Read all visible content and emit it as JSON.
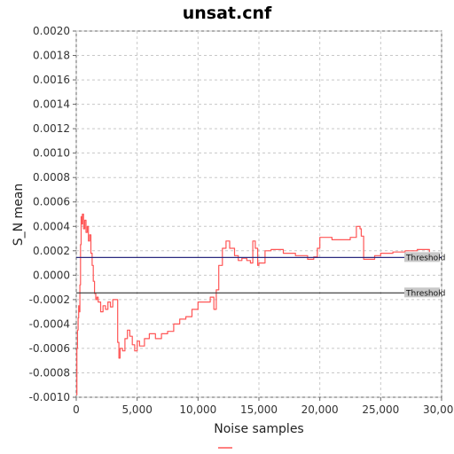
{
  "chart_data": {
    "type": "line",
    "title": "unsat.cnf",
    "xlabel": "Noise samples",
    "ylabel": "S_N mean",
    "xlim": [
      0,
      30000
    ],
    "ylim": [
      -0.001,
      0.002
    ],
    "xticks": [
      "0",
      "5,000",
      "10,000",
      "15,000",
      "20,000",
      "25,000",
      "30,000"
    ],
    "yticks": [
      "0.0020",
      "0.0018",
      "0.0016",
      "0.0014",
      "0.0012",
      "0.0010",
      "0.0008",
      "0.0006",
      "0.0004",
      "0.0002",
      "0.0000",
      "-0.0002",
      "-0.0004",
      "-0.0006",
      "-0.0008",
      "-0.0010"
    ],
    "grid": true,
    "legend": "bottom-center",
    "series": [
      {
        "color": "#ff5555",
        "x": [
          0,
          50,
          100,
          150,
          200,
          250,
          300,
          350,
          400,
          450,
          500,
          600,
          700,
          800,
          900,
          1000,
          1100,
          1200,
          1300,
          1400,
          1500,
          1600,
          1700,
          1800,
          2000,
          2200,
          2400,
          2600,
          2800,
          3000,
          3200,
          3400,
          3500,
          3600,
          3800,
          4000,
          4200,
          4400,
          4600,
          4800,
          5000,
          5200,
          5600,
          6000,
          6500,
          7000,
          7500,
          8000,
          8500,
          9000,
          9500,
          10000,
          10500,
          11000,
          11300,
          11500,
          11700,
          12000,
          12300,
          12600,
          13000,
          13300,
          13600,
          14000,
          14300,
          14500,
          14700,
          14900,
          15000,
          15500,
          16000,
          17000,
          18000,
          19000,
          19500,
          19800,
          20000,
          21000,
          22000,
          22500,
          23000,
          23300,
          23400,
          23600,
          24000,
          24500,
          25000,
          26000,
          27000,
          28000,
          29000
        ],
        "values": [
          -0.00098,
          -0.0006,
          -0.00045,
          -0.00035,
          -0.00025,
          -0.0003,
          -8e-05,
          0.00025,
          0.00048,
          0.00042,
          0.0005,
          0.00038,
          0.00045,
          0.00035,
          0.0004,
          0.00028,
          0.00033,
          0.00018,
          8e-05,
          -5e-05,
          -0.00015,
          -0.0002,
          -0.00018,
          -0.00022,
          -0.0003,
          -0.00025,
          -0.00028,
          -0.00022,
          -0.00026,
          -0.0002,
          -0.0002,
          -0.00055,
          -0.00068,
          -0.0006,
          -0.00062,
          -0.00052,
          -0.00045,
          -0.0005,
          -0.00057,
          -0.00062,
          -0.00054,
          -0.00058,
          -0.00052,
          -0.00048,
          -0.00052,
          -0.00048,
          -0.00046,
          -0.0004,
          -0.00036,
          -0.00034,
          -0.00028,
          -0.00022,
          -0.00022,
          -0.00018,
          -0.00028,
          -0.00012,
          8e-05,
          0.00022,
          0.00028,
          0.00022,
          0.00016,
          0.00012,
          0.00014,
          0.00012,
          0.0001,
          0.00028,
          0.00022,
          8e-05,
          0.0001,
          0.0002,
          0.00021,
          0.00018,
          0.00016,
          0.00013,
          0.00015,
          0.00022,
          0.00031,
          0.00029,
          0.00029,
          0.00031,
          0.0004,
          0.00038,
          0.00032,
          0.00013,
          0.00013,
          0.00016,
          0.00018,
          0.00019,
          0.0002,
          0.00021,
          0.00019
        ]
      }
    ],
    "thresholds": [
      {
        "label": "Threshold",
        "value": 0.000145,
        "color": "#2b2b80"
      },
      {
        "label": "Threshold",
        "value": -0.000145,
        "color": "#333333"
      }
    ]
  }
}
